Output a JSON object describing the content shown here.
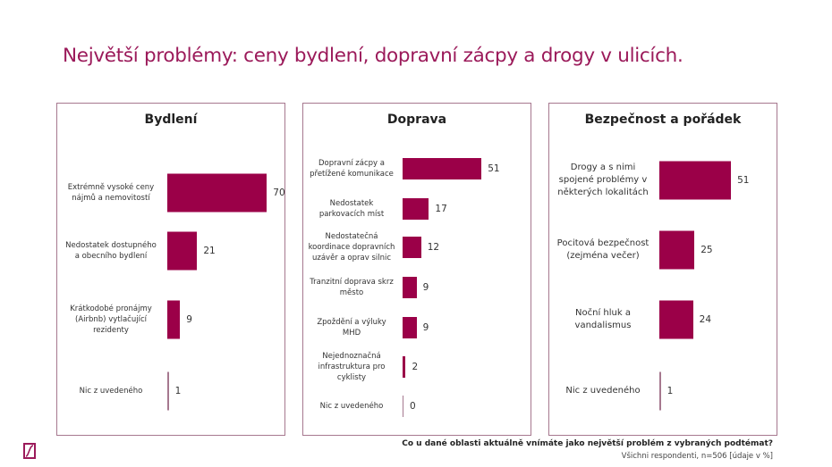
{
  "title": "Největší problémy: ceny bydlení, dopravní zácpy a drogy v ulicích.",
  "footer": {
    "question": "Co u dané oblasti aktuálně vnímáte jako největší problém z vybraných podtémat?",
    "base": "Všichni respondenti, n=506 [údaje v %]"
  },
  "colors": {
    "bar": "#9b0048",
    "title": "#9b1a5a",
    "border": "#a6788f"
  },
  "chart_data": [
    {
      "type": "bar",
      "orientation": "horizontal",
      "title": "Bydlení",
      "categories": [
        "Extrémně vysoké ceny nájmů a nemovitostí",
        "Nedostatek dostupného a obecního bydlení",
        "Krátkodobé pronájmy (Airbnb) vytlačující rezidenty",
        "Nic z uvedeného"
      ],
      "values": [
        70,
        21,
        9,
        1
      ]
    },
    {
      "type": "bar",
      "orientation": "horizontal",
      "title": "Doprava",
      "categories": [
        "Dopravní zácpy a přetížené komunikace",
        "Nedostatek parkovacích míst",
        "Nedostatečná koordinace dopravních uzávěr a oprav silnic",
        "Tranzitní doprava skrz město",
        "Zpoždění a výluky MHD",
        "Nejednoznačná infrastruktura pro cyklisty",
        "Nic z uvedeného"
      ],
      "values": [
        51,
        17,
        12,
        9,
        9,
        2,
        0
      ]
    },
    {
      "type": "bar",
      "orientation": "horizontal",
      "title": "Bezpečnost a pořádek",
      "categories": [
        "Drogy a s nimi spojené problémy v některých lokalitách",
        "Pocitová bezpečnost (zejména večer)",
        "Noční hluk a vandalismus",
        "Nic z uvedeného"
      ],
      "values": [
        51,
        25,
        24,
        1
      ]
    }
  ]
}
